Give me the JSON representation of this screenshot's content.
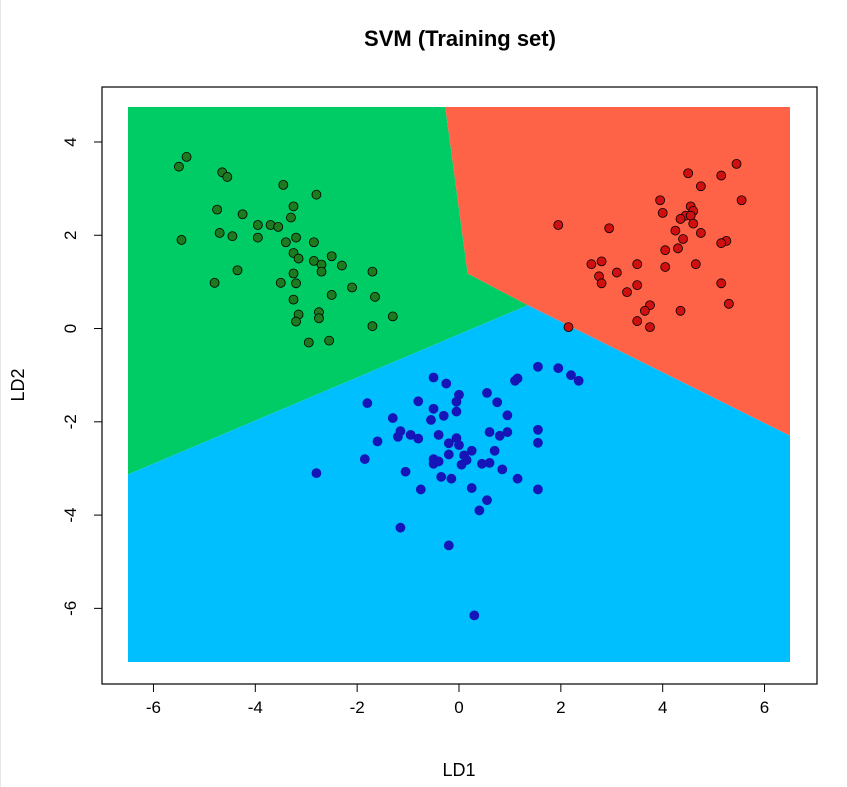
{
  "chart_data": {
    "type": "scatter",
    "title": "SVM (Training set)",
    "xlabel": "LD1",
    "ylabel": "LD2",
    "xlim": [
      -6.5,
      6.5
    ],
    "ylim": [
      -7.15,
      4.75
    ],
    "xticks": [
      -6,
      -4,
      -2,
      0,
      2,
      4,
      6
    ],
    "yticks": [
      -6,
      -4,
      -2,
      0,
      2,
      4
    ],
    "grid": false,
    "colors": {
      "region_green": "#00CC66",
      "region_red": "#FF6347",
      "region_blue": "#00BFFF",
      "point_green": "#1E7A1E",
      "point_red": "#D01010",
      "point_blue": "#1515B8"
    },
    "regions": [
      {
        "color": "green",
        "polygon": [
          [
            -6.5,
            4.75
          ],
          [
            -0.27,
            4.75
          ],
          [
            0.17,
            1.18
          ],
          [
            1.35,
            0.5
          ],
          [
            -6.5,
            -3.13
          ]
        ]
      },
      {
        "color": "red",
        "polygon": [
          [
            -0.27,
            4.75
          ],
          [
            6.5,
            4.75
          ],
          [
            6.5,
            -2.3
          ],
          [
            1.35,
            0.5
          ],
          [
            0.17,
            1.18
          ]
        ]
      },
      {
        "color": "blue",
        "polygon": [
          [
            -6.5,
            -3.13
          ],
          [
            1.35,
            0.5
          ],
          [
            6.5,
            -2.3
          ],
          [
            6.5,
            -7.15
          ],
          [
            -6.5,
            -7.15
          ]
        ]
      }
    ],
    "series": [
      {
        "color": "green",
        "points": [
          [
            -5.5,
            3.47
          ],
          [
            -5.35,
            3.68
          ],
          [
            -4.65,
            3.35
          ],
          [
            -4.55,
            3.25
          ],
          [
            -3.45,
            3.08
          ],
          [
            -2.8,
            2.87
          ],
          [
            -4.75,
            2.55
          ],
          [
            -4.25,
            2.45
          ],
          [
            -3.25,
            2.62
          ],
          [
            -3.3,
            2.38
          ],
          [
            -3.95,
            2.22
          ],
          [
            -3.7,
            2.22
          ],
          [
            -3.55,
            2.18
          ],
          [
            -4.7,
            2.05
          ],
          [
            -4.45,
            1.98
          ],
          [
            -3.95,
            1.95
          ],
          [
            -3.2,
            1.95
          ],
          [
            -3.4,
            1.85
          ],
          [
            -2.85,
            1.85
          ],
          [
            -5.45,
            1.9
          ],
          [
            -3.25,
            1.62
          ],
          [
            -3.15,
            1.5
          ],
          [
            -2.85,
            1.45
          ],
          [
            -2.7,
            1.37
          ],
          [
            -2.5,
            1.55
          ],
          [
            -2.3,
            1.35
          ],
          [
            -2.7,
            1.22
          ],
          [
            -3.25,
            1.18
          ],
          [
            -1.7,
            1.22
          ],
          [
            -4.35,
            1.25
          ],
          [
            -3.5,
            0.98
          ],
          [
            -3.2,
            0.97
          ],
          [
            -4.8,
            0.98
          ],
          [
            -2.1,
            0.88
          ],
          [
            -2.5,
            0.72
          ],
          [
            -1.65,
            0.68
          ],
          [
            -3.25,
            0.62
          ],
          [
            -2.75,
            0.35
          ],
          [
            -2.75,
            0.22
          ],
          [
            -3.15,
            0.3
          ],
          [
            -3.2,
            0.15
          ],
          [
            -1.3,
            0.26
          ],
          [
            -1.7,
            0.05
          ],
          [
            -2.95,
            -0.3
          ],
          [
            -2.55,
            -0.26
          ]
        ]
      },
      {
        "color": "red",
        "points": [
          [
            5.45,
            3.53
          ],
          [
            4.5,
            3.33
          ],
          [
            5.15,
            3.28
          ],
          [
            4.75,
            3.05
          ],
          [
            4.55,
            2.62
          ],
          [
            4.6,
            2.52
          ],
          [
            5.55,
            2.75
          ],
          [
            3.95,
            2.75
          ],
          [
            4.0,
            2.48
          ],
          [
            4.45,
            2.42
          ],
          [
            4.55,
            2.42
          ],
          [
            4.35,
            2.35
          ],
          [
            4.6,
            2.25
          ],
          [
            1.95,
            2.22
          ],
          [
            2.95,
            2.15
          ],
          [
            4.25,
            2.1
          ],
          [
            4.75,
            2.05
          ],
          [
            5.25,
            1.88
          ],
          [
            5.15,
            1.83
          ],
          [
            4.3,
            1.72
          ],
          [
            4.05,
            1.68
          ],
          [
            4.4,
            1.92
          ],
          [
            2.8,
            1.44
          ],
          [
            2.6,
            1.38
          ],
          [
            3.5,
            1.38
          ],
          [
            4.65,
            1.38
          ],
          [
            4.05,
            1.32
          ],
          [
            3.1,
            1.2
          ],
          [
            2.75,
            1.12
          ],
          [
            2.8,
            0.97
          ],
          [
            3.5,
            0.93
          ],
          [
            5.15,
            0.97
          ],
          [
            3.3,
            0.78
          ],
          [
            3.75,
            0.5
          ],
          [
            3.65,
            0.38
          ],
          [
            4.35,
            0.38
          ],
          [
            5.3,
            0.53
          ],
          [
            3.5,
            0.16
          ],
          [
            3.75,
            0.03
          ],
          [
            2.15,
            0.03
          ]
        ]
      },
      {
        "color": "blue",
        "points": [
          [
            1.55,
            -0.82
          ],
          [
            1.95,
            -0.85
          ],
          [
            2.2,
            -1.0
          ],
          [
            2.35,
            -1.12
          ],
          [
            1.15,
            -1.07
          ],
          [
            1.1,
            -1.12
          ],
          [
            -0.5,
            -1.05
          ],
          [
            -0.25,
            -1.18
          ],
          [
            0.55,
            -1.38
          ],
          [
            0.0,
            -1.42
          ],
          [
            -0.05,
            -1.57
          ],
          [
            -1.8,
            -1.6
          ],
          [
            -0.8,
            -1.56
          ],
          [
            -0.5,
            -1.72
          ],
          [
            0.75,
            -1.58
          ],
          [
            -0.3,
            -1.87
          ],
          [
            -0.05,
            -1.78
          ],
          [
            0.95,
            -1.86
          ],
          [
            -1.3,
            -1.92
          ],
          [
            -0.55,
            -1.96
          ],
          [
            -1.15,
            -2.2
          ],
          [
            -1.2,
            -2.32
          ],
          [
            -0.95,
            -2.28
          ],
          [
            -0.8,
            -2.36
          ],
          [
            -0.4,
            -2.28
          ],
          [
            0.6,
            -2.22
          ],
          [
            0.95,
            -2.22
          ],
          [
            1.55,
            -2.17
          ],
          [
            0.8,
            -2.3
          ],
          [
            -0.05,
            -2.35
          ],
          [
            -1.6,
            -2.42
          ],
          [
            1.55,
            -2.45
          ],
          [
            -0.2,
            -2.46
          ],
          [
            0.0,
            -2.5
          ],
          [
            0.25,
            -2.62
          ],
          [
            0.7,
            -2.62
          ],
          [
            -0.2,
            -2.7
          ],
          [
            0.1,
            -2.72
          ],
          [
            -0.5,
            -2.8
          ],
          [
            0.15,
            -2.82
          ],
          [
            -0.5,
            -2.9
          ],
          [
            -0.4,
            -2.85
          ],
          [
            0.05,
            -2.92
          ],
          [
            0.45,
            -2.9
          ],
          [
            0.6,
            -2.88
          ],
          [
            -1.85,
            -2.8
          ],
          [
            0.85,
            -3.02
          ],
          [
            -1.05,
            -3.07
          ],
          [
            -0.35,
            -3.18
          ],
          [
            -0.15,
            -3.22
          ],
          [
            0.25,
            -3.42
          ],
          [
            1.15,
            -3.22
          ],
          [
            -0.75,
            -3.45
          ],
          [
            1.55,
            -3.45
          ],
          [
            0.55,
            -3.68
          ],
          [
            -2.8,
            -3.1
          ],
          [
            0.4,
            -3.9
          ],
          [
            -1.15,
            -4.27
          ],
          [
            -0.2,
            -4.65
          ],
          [
            0.3,
            -6.15
          ]
        ]
      }
    ]
  }
}
